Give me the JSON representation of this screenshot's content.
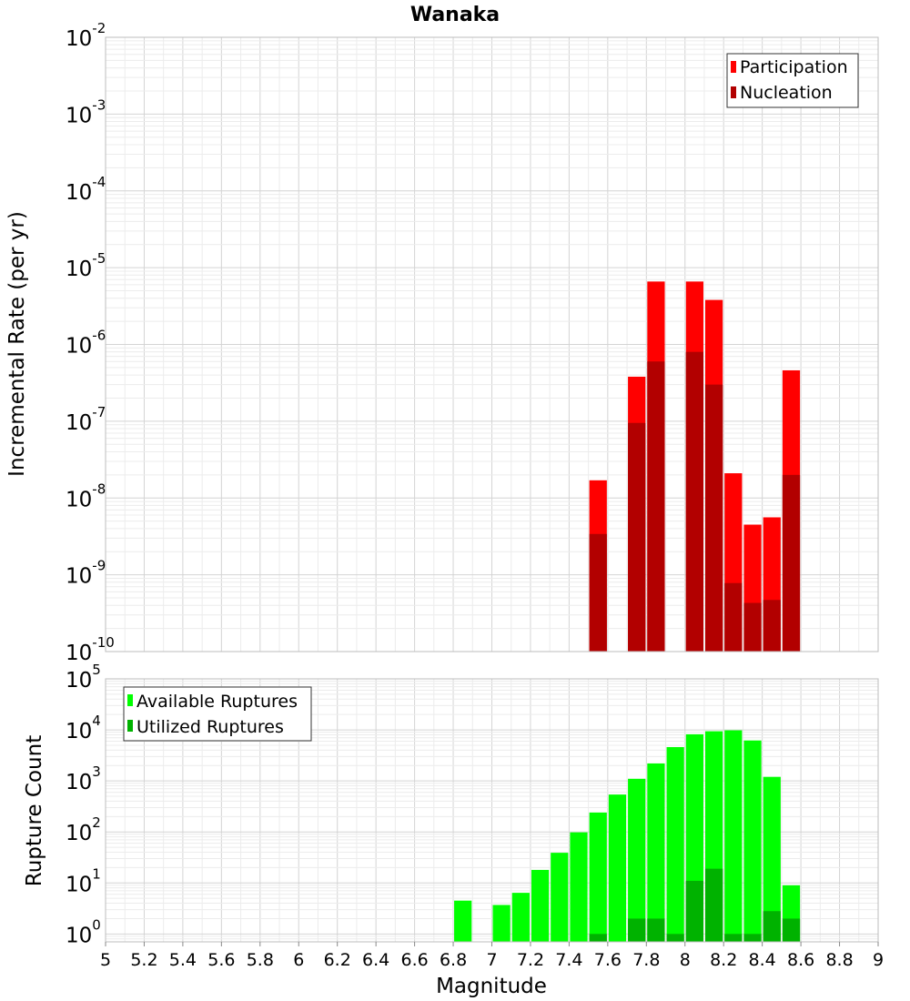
{
  "chart_data": [
    {
      "type": "bar",
      "title": "Wanaka",
      "xlabel": "",
      "ylabel": "Incremental Rate (per yr)",
      "yscale": "log",
      "ylim": [
        1e-10,
        0.01
      ],
      "xlim": [
        5,
        9
      ],
      "grid": true,
      "legend_position": "top-right",
      "y_ticks": [
        {
          "base": "10",
          "exp": "-10"
        },
        {
          "base": "10",
          "exp": "-9"
        },
        {
          "base": "10",
          "exp": "-8"
        },
        {
          "base": "10",
          "exp": "-7"
        },
        {
          "base": "10",
          "exp": "-6"
        },
        {
          "base": "10",
          "exp": "-5"
        },
        {
          "base": "10",
          "exp": "-4"
        },
        {
          "base": "10",
          "exp": "-3"
        },
        {
          "base": "10",
          "exp": "-2"
        }
      ],
      "series": [
        {
          "name": "Participation",
          "color": "#ff0000",
          "x": [
            7.55,
            7.75,
            7.85,
            8.05,
            8.15,
            8.25,
            8.35,
            8.45,
            8.55
          ],
          "values": [
            1.7e-08,
            3.8e-07,
            6.6e-06,
            6.6e-06,
            3.8e-06,
            2.1e-08,
            4.5e-09,
            5.6e-09,
            4.6e-07
          ]
        },
        {
          "name": "Nucleation",
          "color": "#b20000",
          "x": [
            7.55,
            7.75,
            7.85,
            8.05,
            8.15,
            8.25,
            8.35,
            8.45,
            8.55
          ],
          "values": [
            3.4e-09,
            9.5e-08,
            6e-07,
            8e-07,
            3e-07,
            7.8e-10,
            4.3e-10,
            4.7e-10,
            2e-08
          ]
        }
      ]
    },
    {
      "type": "bar",
      "title": "",
      "xlabel": "Magnitude",
      "ylabel": "Rupture Count",
      "yscale": "log",
      "ylim": [
        0.7,
        100000.0
      ],
      "xlim": [
        5,
        9
      ],
      "grid": true,
      "legend_position": "top-left",
      "x_ticks": [
        "5",
        "5.2",
        "5.4",
        "5.6",
        "5.8",
        "6",
        "6.2",
        "6.4",
        "6.6",
        "6.8",
        "7",
        "7.2",
        "7.4",
        "7.6",
        "7.8",
        "8",
        "8.2",
        "8.4",
        "8.6",
        "8.8",
        "9"
      ],
      "y_ticks": [
        {
          "base": "10",
          "exp": "0"
        },
        {
          "base": "10",
          "exp": "1"
        },
        {
          "base": "10",
          "exp": "2"
        },
        {
          "base": "10",
          "exp": "3"
        },
        {
          "base": "10",
          "exp": "4"
        },
        {
          "base": "10",
          "exp": "5"
        }
      ],
      "series": [
        {
          "name": "Available Ruptures",
          "color": "#00ff00",
          "x": [
            6.85,
            7.05,
            7.15,
            7.25,
            7.35,
            7.45,
            7.55,
            7.65,
            7.75,
            7.85,
            7.95,
            8.05,
            8.15,
            8.25,
            8.35,
            8.45,
            8.55
          ],
          "values": [
            4.5,
            3.7,
            6.4,
            18,
            39,
            98,
            240,
            540,
            1100,
            2200,
            4600,
            8200,
            9400,
            9800,
            6200,
            1200,
            9
          ]
        },
        {
          "name": "Utilized Ruptures",
          "color": "#00b200",
          "x": [
            7.55,
            7.75,
            7.85,
            7.95,
            8.05,
            8.15,
            8.25,
            8.35,
            8.45,
            8.55
          ],
          "values": [
            1,
            2,
            2,
            1,
            11,
            19,
            1,
            1,
            2.8,
            2
          ]
        }
      ]
    }
  ]
}
